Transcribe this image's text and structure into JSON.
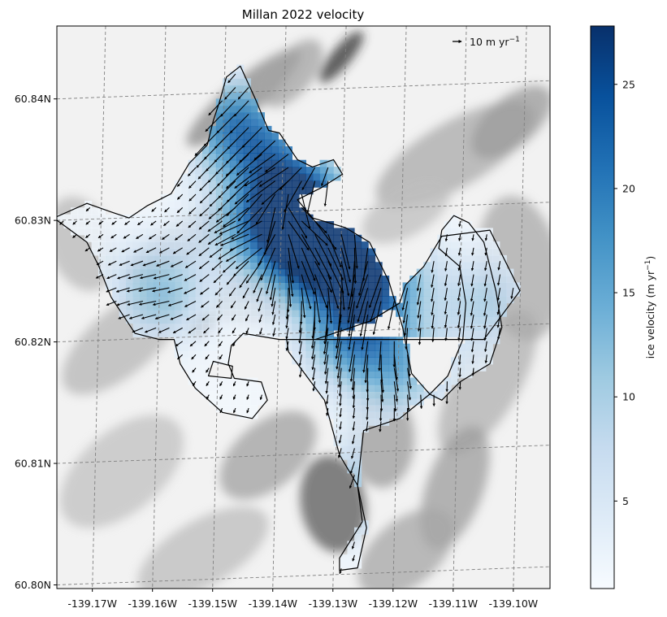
{
  "chart_data": {
    "type": "heatmap",
    "title": "Millan 2022 velocity",
    "xlim": [
      -139.177,
      -139.095
    ],
    "ylim": [
      60.7995,
      60.8458
    ],
    "x_ticks": [
      {
        "value": -139.17,
        "label": "-139.17W"
      },
      {
        "value": -139.16,
        "label": "-139.16W"
      },
      {
        "value": -139.15,
        "label": "-139.15W"
      },
      {
        "value": -139.14,
        "label": "-139.14W"
      },
      {
        "value": -139.13,
        "label": "-139.13W"
      },
      {
        "value": -139.12,
        "label": "-139.12W"
      },
      {
        "value": -139.11,
        "label": "-139.11W"
      },
      {
        "value": -139.1,
        "label": "-139.10W"
      }
    ],
    "y_ticks": [
      {
        "value": 60.8,
        "label": "60.80N"
      },
      {
        "value": 60.81,
        "label": "60.81N"
      },
      {
        "value": 60.82,
        "label": "60.82N"
      },
      {
        "value": 60.83,
        "label": "60.83N"
      },
      {
        "value": 60.84,
        "label": "60.84N"
      }
    ],
    "grid": true,
    "colorbar": {
      "label": "ice velocity (m yr",
      "label_sup": "−1",
      "label_end": ")",
      "min": 0.8,
      "max": 27.8,
      "ticks": [
        5,
        10,
        15,
        20,
        25
      ],
      "colormap": "Blues"
    },
    "quiver_key": {
      "label": "10 m yr",
      "label_sup": "−1",
      "value": 10,
      "placement": "top-right"
    },
    "outline_main": [
      [
        -139.1488,
        60.8416
      ],
      [
        -139.1465,
        60.8425
      ],
      [
        -139.144,
        60.8398
      ],
      [
        -139.1418,
        60.8372
      ],
      [
        -139.14,
        60.837
      ],
      [
        -139.137,
        60.8348
      ],
      [
        -139.1345,
        60.8342
      ],
      [
        -139.131,
        60.8348
      ],
      [
        -139.1295,
        60.8336
      ],
      [
        -139.133,
        60.8325
      ],
      [
        -139.137,
        60.8315
      ],
      [
        -139.1345,
        60.83
      ],
      [
        -139.129,
        60.8292
      ],
      [
        -139.125,
        60.828
      ],
      [
        -139.1218,
        60.8248
      ],
      [
        -139.1195,
        60.821
      ],
      [
        -139.118,
        60.8172
      ],
      [
        -139.115,
        60.8155
      ],
      [
        -139.12,
        60.8135
      ],
      [
        -139.126,
        60.8125
      ],
      [
        -139.127,
        60.808
      ],
      [
        -139.1262,
        60.805
      ],
      [
        -139.13,
        60.802
      ],
      [
        -139.13,
        60.801
      ],
      [
        -139.127,
        60.8012
      ],
      [
        -139.1255,
        60.8045
      ],
      [
        -139.127,
        60.808
      ],
      [
        -139.13,
        60.8105
      ],
      [
        -139.1325,
        60.815
      ],
      [
        -139.1385,
        60.819
      ],
      [
        -139.1388,
        60.82
      ],
      [
        -139.134,
        60.82
      ],
      [
        -139.125,
        60.8215
      ],
      [
        -139.12,
        60.823
      ],
      [
        -139.119,
        60.8245
      ],
      [
        -139.116,
        60.826
      ],
      [
        -139.113,
        60.8285
      ],
      [
        -139.105,
        60.829
      ],
      [
        -139.1,
        60.824
      ],
      [
        -139.106,
        60.82
      ],
      [
        -139.14,
        60.82
      ],
      [
        -139.146,
        60.8205
      ],
      [
        -139.148,
        60.8195
      ],
      [
        -139.1485,
        60.818
      ],
      [
        -139.1475,
        60.8168
      ],
      [
        -139.143,
        60.8165
      ],
      [
        -139.142,
        60.815
      ],
      [
        -139.1445,
        60.8135
      ],
      [
        -139.1495,
        60.814
      ],
      [
        -139.154,
        60.816
      ],
      [
        -139.1565,
        60.818
      ],
      [
        -139.1575,
        60.82
      ],
      [
        -139.16,
        60.82
      ],
      [
        -139.164,
        60.8205
      ],
      [
        -139.166,
        60.822
      ],
      [
        -139.168,
        60.8235
      ],
      [
        -139.17,
        60.826
      ],
      [
        -139.172,
        60.828
      ],
      [
        -139.1775,
        60.83
      ],
      [
        -139.172,
        60.8312
      ],
      [
        -139.168,
        60.8305
      ],
      [
        -139.165,
        60.83
      ],
      [
        -139.162,
        60.831
      ],
      [
        -139.158,
        60.832
      ],
      [
        -139.155,
        60.8345
      ],
      [
        -139.152,
        60.836
      ],
      [
        -139.151,
        60.838
      ],
      [
        -139.15,
        60.8395
      ],
      [
        -139.1488,
        60.8416
      ]
    ],
    "outline_east": [
      [
        -139.111,
        60.8302
      ],
      [
        -139.1085,
        60.8296
      ],
      [
        -139.106,
        60.828
      ],
      [
        -139.104,
        60.824
      ],
      [
        -139.103,
        60.821
      ],
      [
        -139.105,
        60.818
      ],
      [
        -139.11,
        60.8165
      ],
      [
        -139.113,
        60.815
      ],
      [
        -139.115,
        60.8155
      ],
      [
        -139.112,
        60.817
      ],
      [
        -139.1095,
        60.82
      ],
      [
        -139.109,
        60.823
      ],
      [
        -139.11,
        60.826
      ],
      [
        -139.1135,
        60.8275
      ],
      [
        -139.113,
        60.829
      ],
      [
        -139.111,
        60.8302
      ]
    ],
    "outline_inner": [
      [
        -139.14,
        60.841
      ],
      [
        -139.138,
        60.839
      ],
      [
        -139.135,
        60.837
      ],
      [
        -139.134,
        60.8345
      ],
      [
        -139.139,
        60.833
      ],
      [
        -139.142,
        60.834
      ],
      [
        -139.143,
        60.837
      ],
      [
        -139.142,
        60.8395
      ],
      [
        -139.14,
        60.841
      ]
    ],
    "outline_nunatak": [
      [
        -139.1518,
        60.817
      ],
      [
        -139.148,
        60.8168
      ],
      [
        -139.1478,
        60.8178
      ],
      [
        -139.151,
        60.8182
      ],
      [
        -139.1518,
        60.817
      ]
    ],
    "velocity_hotspots": [
      {
        "lon": -139.1335,
        "lat": 60.8268,
        "speed": 26,
        "dir_deg": 300
      },
      {
        "lon": -139.1365,
        "lat": 60.8302,
        "speed": 27,
        "dir_deg": 320
      },
      {
        "lon": -139.124,
        "lat": 60.8252,
        "speed": 21,
        "dir_deg": 250
      },
      {
        "lon": -139.128,
        "lat": 60.8205,
        "speed": 18,
        "dir_deg": 260
      },
      {
        "lon": -139.147,
        "lat": 60.8375,
        "speed": 20,
        "dir_deg": 225
      },
      {
        "lon": -139.1445,
        "lat": 60.829,
        "speed": 12,
        "dir_deg": 200
      },
      {
        "lon": -139.16,
        "lat": 60.824,
        "speed": 12,
        "dir_deg": 190
      },
      {
        "lon": -139.14,
        "lat": 60.834,
        "speed": 14,
        "dir_deg": 210
      },
      {
        "lon": -139.12,
        "lat": 60.8175,
        "speed": 12,
        "dir_deg": 280
      },
      {
        "lon": -139.127,
        "lat": 60.808,
        "speed": 9,
        "dir_deg": 250
      },
      {
        "lon": -139.106,
        "lat": 60.823,
        "speed": 9,
        "dir_deg": 260
      }
    ]
  }
}
